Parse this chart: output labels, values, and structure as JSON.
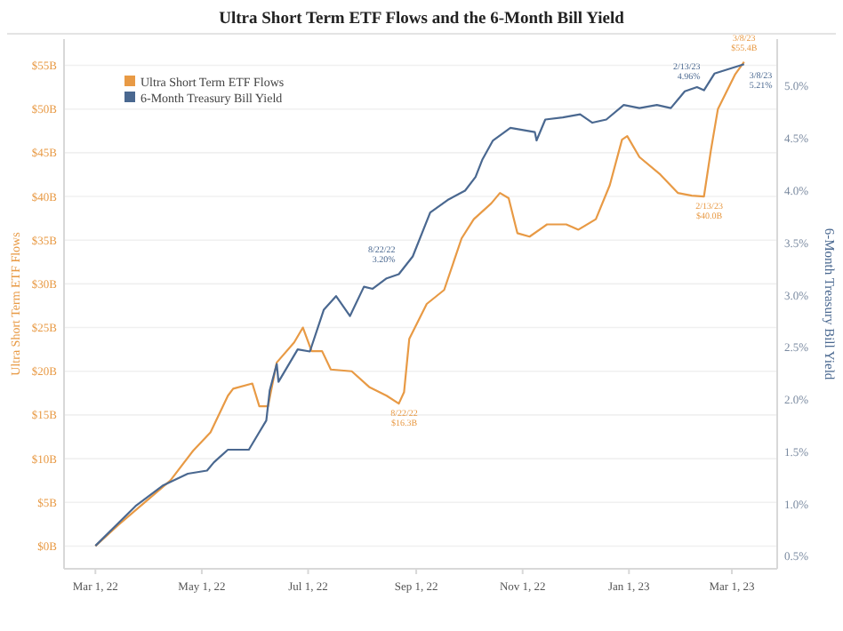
{
  "chart_data": {
    "type": "line",
    "title": "Ultra Short Term ETF Flows and the 6-Month Bill Yield",
    "ylabel": "Ultra Short Term ETF Flows",
    "y2label": "6-Month Treasury Bill Yield",
    "xlim": [
      "2022-02-11",
      "2023-03-27"
    ],
    "xticks": [
      {
        "value": "2022-03-01",
        "label": "Mar 1, 22"
      },
      {
        "value": "2022-05-01",
        "label": "May 1, 22"
      },
      {
        "value": "2022-07-01",
        "label": "Jul 1, 22"
      },
      {
        "value": "2022-09-01",
        "label": "Sep 1, 22"
      },
      {
        "value": "2022-11-01",
        "label": "Nov 1, 22"
      },
      {
        "value": "2023-01-01",
        "label": "Jan 1, 23"
      },
      {
        "value": "2023-03-01",
        "label": "Mar 1, 23"
      }
    ],
    "ylim": [
      -2.6,
      58
    ],
    "yticks": [
      {
        "value": 0,
        "label": "$0B"
      },
      {
        "value": 5,
        "label": "$5B"
      },
      {
        "value": 10,
        "label": "$10B"
      },
      {
        "value": 15,
        "label": "$15B"
      },
      {
        "value": 20,
        "label": "$20B"
      },
      {
        "value": 25,
        "label": "$25B"
      },
      {
        "value": 30,
        "label": "$30B"
      },
      {
        "value": 35,
        "label": "$35B"
      },
      {
        "value": 40,
        "label": "$40B"
      },
      {
        "value": 45,
        "label": "$45B"
      },
      {
        "value": 50,
        "label": "$50B"
      },
      {
        "value": 55,
        "label": "$55B"
      }
    ],
    "y2lim": [
      0.38,
      5.45
    ],
    "y2ticks": [
      {
        "value": 0.5,
        "label": "0.5%"
      },
      {
        "value": 1,
        "label": "1.0%"
      },
      {
        "value": 1.5,
        "label": "1.5%"
      },
      {
        "value": 2,
        "label": "2.0%"
      },
      {
        "value": 2.5,
        "label": "2.5%"
      },
      {
        "value": 3,
        "label": "3.0%"
      },
      {
        "value": 3.5,
        "label": "3.5%"
      },
      {
        "value": 4,
        "label": "4.0%"
      },
      {
        "value": 4.5,
        "label": "4.5%"
      },
      {
        "value": 5,
        "label": "5.0%"
      }
    ],
    "grid": "y",
    "legend": "top left",
    "line_style": "solid",
    "marker": "none",
    "series": [
      {
        "name": "Ultra Short Term ETF Flows",
        "color": "#e89a45",
        "x": [
          "2022-03-01",
          "2022-03-14",
          "2022-04-13",
          "2022-04-26",
          "2022-05-06",
          "2022-05-16",
          "2022-05-19",
          "2022-05-30",
          "2022-06-03",
          "2022-06-08",
          "2022-06-13",
          "2022-06-23",
          "2022-06-28",
          "2022-07-03",
          "2022-07-09",
          "2022-07-14",
          "2022-07-26",
          "2022-08-05",
          "2022-08-15",
          "2022-08-22",
          "2022-08-25",
          "2022-08-28",
          "2022-09-07",
          "2022-09-17",
          "2022-09-27",
          "2022-10-04",
          "2022-10-14",
          "2022-10-19",
          "2022-10-24",
          "2022-10-29",
          "2022-11-05",
          "2022-11-15",
          "2022-11-26",
          "2022-12-03",
          "2022-12-13",
          "2022-12-21",
          "2022-12-28",
          "2022-12-31",
          "2023-01-07",
          "2023-01-19",
          "2023-01-29",
          "2023-02-06",
          "2023-02-13",
          "2023-02-17",
          "2023-02-21",
          "2023-03-03",
          "2023-03-08"
        ],
        "values": [
          0,
          2.4,
          7.5,
          10.9,
          13,
          17.2,
          18,
          18.6,
          16,
          16,
          21,
          23.3,
          25,
          22.3,
          22.3,
          20.2,
          20,
          18.2,
          17.2,
          16.3,
          17.6,
          23.7,
          27.7,
          29.3,
          35.2,
          37.4,
          39.2,
          40.4,
          39.8,
          35.8,
          35.4,
          36.8,
          36.8,
          36.2,
          37.4,
          41.3,
          46.5,
          46.9,
          44.5,
          42.5,
          40.4,
          40.1,
          40.0,
          45.3,
          50,
          54,
          55.4
        ],
        "value_labels": [
          null,
          null,
          null,
          null,
          null,
          null,
          null,
          null,
          null,
          null,
          null,
          null,
          null,
          null,
          null,
          null,
          null,
          null,
          null,
          "8/22/22\n$16.3B",
          null,
          null,
          null,
          null,
          null,
          null,
          null,
          null,
          null,
          null,
          null,
          null,
          null,
          null,
          null,
          null,
          null,
          null,
          null,
          null,
          null,
          null,
          "2/13/23\n$40.0B",
          null,
          null,
          null,
          "3/8/23\n$55.4B"
        ]
      },
      {
        "name": "6-Month Treasury Bill Yield",
        "color": "#4a6890",
        "axis": "y2",
        "x": [
          "2022-03-01",
          "2022-03-24",
          "2022-04-09",
          "2022-04-23",
          "2022-05-04",
          "2022-05-08",
          "2022-05-16",
          "2022-05-28",
          "2022-06-02",
          "2022-06-07",
          "2022-06-09",
          "2022-06-13",
          "2022-06-14",
          "2022-06-25",
          "2022-07-02",
          "2022-07-10",
          "2022-07-17",
          "2022-07-25",
          "2022-08-02",
          "2022-08-07",
          "2022-08-15",
          "2022-08-22",
          "2022-08-30",
          "2022-09-09",
          "2022-09-19",
          "2022-09-29",
          "2022-10-05",
          "2022-10-09",
          "2022-10-15",
          "2022-10-25",
          "2022-11-08",
          "2022-11-09",
          "2022-11-14",
          "2022-11-24",
          "2022-12-04",
          "2022-12-11",
          "2022-12-19",
          "2022-12-29",
          "2023-01-07",
          "2023-01-17",
          "2023-01-25",
          "2023-02-02",
          "2023-02-09",
          "2023-02-13",
          "2023-02-19",
          "2023-03-08"
        ],
        "values": [
          0.6,
          0.98,
          1.18,
          1.29,
          1.32,
          1.4,
          1.52,
          1.52,
          1.66,
          1.8,
          2.09,
          2.34,
          2.17,
          2.48,
          2.46,
          2.86,
          2.99,
          2.8,
          3.08,
          3.06,
          3.16,
          3.2,
          3.37,
          3.79,
          3.91,
          4.0,
          4.13,
          4.3,
          4.48,
          4.6,
          4.56,
          4.48,
          4.68,
          4.7,
          4.73,
          4.65,
          4.68,
          4.82,
          4.79,
          4.82,
          4.79,
          4.95,
          4.99,
          4.96,
          5.12,
          5.21
        ],
        "value_labels": [
          null,
          null,
          null,
          null,
          null,
          null,
          null,
          null,
          null,
          null,
          null,
          null,
          null,
          null,
          null,
          null,
          null,
          null,
          null,
          null,
          null,
          "8/22/22\n3.20%",
          null,
          null,
          null,
          null,
          null,
          null,
          null,
          null,
          null,
          null,
          null,
          null,
          null,
          null,
          null,
          null,
          null,
          null,
          null,
          null,
          null,
          "2/13/23\n4.96%",
          null,
          "3/8/23\n5.21%"
        ]
      }
    ]
  }
}
